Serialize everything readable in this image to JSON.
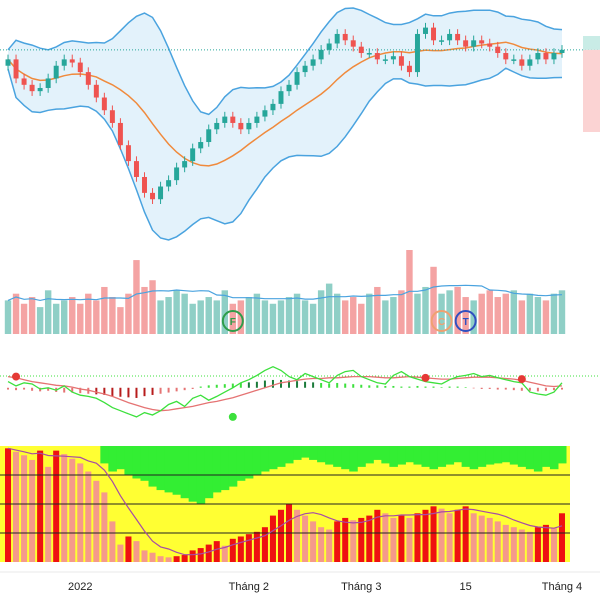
{
  "colors": {
    "up": "#26a69a",
    "down": "#ef5350",
    "ma": "#f08a3c",
    "band": "#4aa3df",
    "bandFill": "#e3f2fb",
    "lastPrice": "#26a69a",
    "volUp": "#8fcfc6",
    "volDown": "#f4a3a3",
    "volMA": "#4aa3df",
    "oscGreen": "#3ce03c",
    "oscRed": "#e57373",
    "oscRefLine": "#2e9d4a",
    "trendDot": "#e53935",
    "gridLine": "#e8e8e8",
    "yellow": "#ffff33",
    "green": "#33ee33",
    "barRed": "#ee1111",
    "barSalmon": "#f59a8a",
    "purple": "#a64ca6",
    "black": "#222222",
    "markerF": "#2e9d4a",
    "markerC": "#f0a070",
    "markerT": "#3050c0"
  },
  "chart_data": [
    {
      "type": "candlestick",
      "panel": "price",
      "overlays": [
        "moving-average",
        "bollinger-bands"
      ],
      "x": [
        1,
        2,
        3,
        4,
        5,
        6,
        7,
        8,
        9,
        10,
        11,
        12,
        13,
        14,
        15,
        16,
        17,
        18,
        19,
        20,
        21,
        22,
        23,
        24,
        25,
        26,
        27,
        28,
        29,
        30,
        31,
        32,
        33,
        34,
        35,
        36,
        37,
        38,
        39,
        40,
        41,
        42,
        43,
        44,
        45,
        46,
        47,
        48,
        49,
        50,
        51,
        52,
        53,
        54,
        55,
        56,
        57,
        58,
        59,
        60,
        61,
        62,
        63,
        64,
        65,
        66,
        67,
        68,
        69,
        70
      ],
      "open": [
        70,
        72,
        66,
        64,
        62,
        63,
        66,
        70,
        72,
        71,
        68,
        64,
        60,
        56,
        52,
        45,
        40,
        35,
        30,
        28,
        32,
        34,
        38,
        40,
        44,
        46,
        50,
        52,
        54,
        52,
        50,
        52,
        54,
        56,
        58,
        62,
        64,
        68,
        70,
        72,
        75,
        77,
        80,
        78,
        76,
        74,
        74,
        72,
        72,
        73,
        70,
        68,
        80,
        82,
        78,
        78,
        80,
        78,
        76,
        78,
        77,
        76,
        74,
        72,
        72,
        70,
        72,
        74,
        72,
        74
      ],
      "close": [
        72,
        66,
        64,
        62,
        63,
        66,
        70,
        72,
        71,
        68,
        64,
        60,
        56,
        52,
        45,
        40,
        35,
        30,
        28,
        32,
        34,
        38,
        40,
        44,
        46,
        50,
        52,
        54,
        52,
        50,
        52,
        54,
        56,
        58,
        62,
        64,
        68,
        70,
        72,
        75,
        77,
        80,
        78,
        76,
        74,
        74,
        72,
        72,
        73,
        70,
        68,
        80,
        82,
        78,
        78,
        80,
        78,
        76,
        78,
        77,
        76,
        74,
        72,
        72,
        70,
        72,
        74,
        72,
        74,
        75
      ],
      "xticks": [
        {
          "index": 9,
          "label": "2022"
        },
        {
          "index": 30,
          "label": "Tháng 2"
        },
        {
          "index": 44,
          "label": "Tháng 3"
        },
        {
          "index": 57,
          "label": "15"
        },
        {
          "index": 69,
          "label": "Tháng 4"
        }
      ]
    },
    {
      "type": "bar",
      "panel": "volume",
      "values": [
        10,
        12,
        9,
        11,
        8,
        13,
        9,
        10,
        11,
        9,
        12,
        10,
        14,
        11,
        8,
        12,
        22,
        14,
        16,
        10,
        11,
        13,
        12,
        9,
        10,
        11,
        10,
        13,
        9,
        10,
        11,
        12,
        10,
        9,
        10,
        11,
        12,
        10,
        9,
        13,
        15,
        12,
        10,
        11,
        9,
        12,
        14,
        10,
        11,
        13,
        25,
        12,
        14,
        20,
        12,
        13,
        14,
        11,
        10,
        12,
        13,
        11,
        12,
        13,
        10,
        12,
        11,
        10,
        12,
        13
      ],
      "markers": [
        {
          "index": 28,
          "label": "F"
        },
        {
          "index": 54,
          "label": "C"
        },
        {
          "index": 57,
          "label": "T"
        }
      ]
    },
    {
      "type": "line",
      "panel": "oscillator",
      "series": [
        {
          "values": [
            0.62,
            0.55,
            0.6,
            0.58,
            0.5,
            0.52,
            0.48,
            0.55,
            0.45,
            0.4,
            0.38,
            0.35,
            0.28,
            0.2,
            0.15,
            0.1,
            0.05,
            0.12,
            0.08,
            0.15,
            0.25,
            0.3,
            0.22,
            0.35,
            0.4,
            0.32,
            0.38,
            0.45,
            0.52,
            0.6,
            0.65,
            0.72,
            0.8,
            0.86,
            0.8,
            0.7,
            0.65,
            0.75,
            0.7,
            0.65,
            0.6,
            0.72,
            0.78,
            0.8,
            0.7,
            0.65,
            0.6,
            0.58,
            0.72,
            0.78,
            0.7,
            0.66,
            0.62,
            0.6,
            0.58,
            0.65,
            0.7,
            0.72,
            0.75,
            0.7,
            0.72,
            0.68,
            0.65,
            0.62,
            0.6,
            0.45,
            0.42,
            0.4,
            0.45,
            0.6
          ]
        },
        {
          "values": [
            0.7,
            0.68,
            0.65,
            0.62,
            0.6,
            0.58,
            0.56,
            0.55,
            0.53,
            0.5,
            0.48,
            0.45,
            0.42,
            0.38,
            0.33,
            0.28,
            0.24,
            0.2,
            0.17,
            0.15,
            0.16,
            0.18,
            0.2,
            0.22,
            0.25,
            0.28,
            0.3,
            0.33,
            0.36,
            0.4,
            0.44,
            0.48,
            0.52,
            0.56,
            0.6,
            0.62,
            0.64,
            0.66,
            0.67,
            0.67,
            0.68,
            0.68,
            0.69,
            0.7,
            0.7,
            0.7,
            0.69,
            0.68,
            0.68,
            0.69,
            0.7,
            0.69,
            0.68,
            0.67,
            0.66,
            0.66,
            0.67,
            0.68,
            0.69,
            0.69,
            0.69,
            0.68,
            0.67,
            0.66,
            0.64,
            0.61,
            0.58,
            0.55,
            0.54,
            0.55
          ]
        }
      ],
      "histogram": [
        -0.03,
        -0.04,
        -0.03,
        -0.05,
        -0.06,
        -0.05,
        -0.07,
        -0.08,
        -0.08,
        -0.09,
        -0.1,
        -0.11,
        -0.12,
        -0.14,
        -0.15,
        -0.16,
        -0.17,
        -0.14,
        -0.12,
        -0.1,
        -0.08,
        -0.06,
        -0.04,
        -0.02,
        0.02,
        0.04,
        0.05,
        0.06,
        0.07,
        0.08,
        0.09,
        0.1,
        0.12,
        0.13,
        0.13,
        0.12,
        0.11,
        0.1,
        0.09,
        0.08,
        0.07,
        0.08,
        0.07,
        0.06,
        0.05,
        0.04,
        0.04,
        0.03,
        0.03,
        0.02,
        0.02,
        0.03,
        0.02,
        0.02,
        0.01,
        0.02,
        0.02,
        0.01,
        -0.01,
        -0.02,
        -0.02,
        -0.03,
        -0.03,
        -0.04,
        -0.05,
        -0.05,
        -0.06,
        -0.05,
        -0.04,
        -0.03
      ],
      "dots": [
        {
          "index": 1,
          "series": 1,
          "value": 0.7
        },
        {
          "index": 28,
          "series": 0,
          "value": 0.05
        },
        {
          "index": 52,
          "series": 1,
          "value": 0.68
        },
        {
          "index": 64,
          "series": 1,
          "value": 0.66
        }
      ]
    },
    {
      "type": "bar",
      "panel": "breadth",
      "values": [
        0.98,
        0.95,
        0.92,
        0.88,
        0.96,
        0.82,
        0.96,
        0.93,
        0.89,
        0.85,
        0.78,
        0.7,
        0.6,
        0.35,
        0.15,
        0.22,
        0.18,
        0.1,
        0.08,
        0.05,
        0.04,
        0.05,
        0.06,
        0.1,
        0.12,
        0.15,
        0.18,
        0.14,
        0.2,
        0.22,
        0.24,
        0.26,
        0.3,
        0.4,
        0.45,
        0.5,
        0.45,
        0.4,
        0.35,
        0.3,
        0.28,
        0.35,
        0.38,
        0.36,
        0.38,
        0.4,
        0.45,
        0.42,
        0.38,
        0.4,
        0.38,
        0.42,
        0.45,
        0.48,
        0.46,
        0.42,
        0.45,
        0.48,
        0.42,
        0.4,
        0.38,
        0.35,
        0.32,
        0.3,
        0.28,
        0.26,
        0.3,
        0.32,
        0.29,
        0.42
      ],
      "greenTop": [
        0.0,
        0.0,
        0.0,
        0.0,
        0.0,
        0.0,
        0.0,
        0.0,
        0.0,
        0.0,
        0.0,
        0.0,
        0.15,
        0.22,
        0.2,
        0.25,
        0.28,
        0.3,
        0.35,
        0.38,
        0.4,
        0.42,
        0.45,
        0.48,
        0.5,
        0.45,
        0.4,
        0.38,
        0.35,
        0.3,
        0.28,
        0.25,
        0.22,
        0.2,
        0.18,
        0.15,
        0.12,
        0.1,
        0.12,
        0.14,
        0.16,
        0.18,
        0.2,
        0.22,
        0.18,
        0.15,
        0.12,
        0.15,
        0.18,
        0.16,
        0.14,
        0.16,
        0.18,
        0.2,
        0.18,
        0.16,
        0.14,
        0.18,
        0.2,
        0.18,
        0.16,
        0.15,
        0.14,
        0.16,
        0.18,
        0.2,
        0.22,
        0.18,
        0.2,
        0.15
      ]
    }
  ]
}
